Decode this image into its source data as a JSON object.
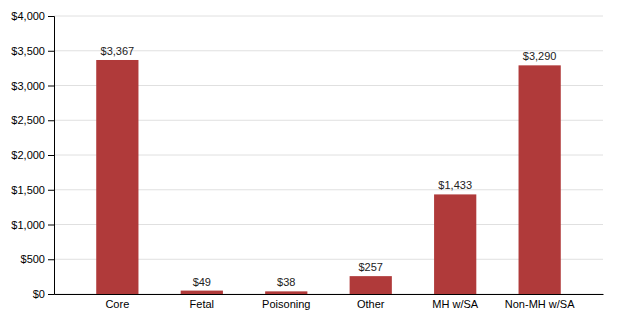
{
  "chart_data": {
    "type": "bar",
    "categories": [
      "Core",
      "Fetal",
      "Poisoning",
      "Other",
      "MH w/SA",
      "Non-MH w/SA"
    ],
    "values": [
      3367,
      49,
      38,
      257,
      1433,
      3290
    ],
    "value_labels": [
      "$3,367",
      "$49",
      "$38",
      "$257",
      "$1,433",
      "$3,290"
    ],
    "color": "#b03a3a",
    "ylim": [
      0,
      4000
    ],
    "yticks": [
      {
        "value": 0,
        "label": "$0"
      },
      {
        "value": 500,
        "label": "$500"
      },
      {
        "value": 1000,
        "label": "$1,000"
      },
      {
        "value": 1500,
        "label": "$1,500"
      },
      {
        "value": 2000,
        "label": "$2,000"
      },
      {
        "value": 2500,
        "label": "$2,500"
      },
      {
        "value": 3000,
        "label": "$3,000"
      },
      {
        "value": 3500,
        "label": "$3,500"
      },
      {
        "value": 4000,
        "label": "$4,000"
      }
    ],
    "grid": true
  }
}
